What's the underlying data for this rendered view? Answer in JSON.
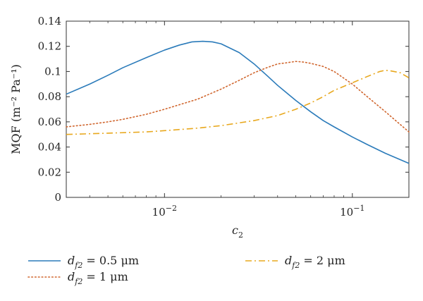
{
  "chart_data": {
    "type": "line",
    "xscale": "log",
    "xlim": [
      0.003,
      0.2
    ],
    "ylim": [
      0,
      0.14
    ],
    "xlabel": "c",
    "xlabel_sub": "2",
    "ylabel": "MQF (m⁻² Pa⁻¹)",
    "x_ticks": [
      {
        "value": 0.01,
        "base": "10",
        "exp": "−2"
      },
      {
        "value": 0.1,
        "base": "10",
        "exp": "−1"
      }
    ],
    "y_ticks": [
      {
        "value": 0,
        "label": "0"
      },
      {
        "value": 0.02,
        "label": "0.02"
      },
      {
        "value": 0.04,
        "label": "0.04"
      },
      {
        "value": 0.06,
        "label": "0.06"
      },
      {
        "value": 0.08,
        "label": "0.08"
      },
      {
        "value": 0.1,
        "label": "0.1"
      },
      {
        "value": 0.12,
        "label": "0.12"
      },
      {
        "value": 0.14,
        "label": "0.14"
      }
    ],
    "legend_position": "bottom",
    "series": [
      {
        "name": "d_f2 = 0.5 μm",
        "label_var": "d",
        "label_sub": "f2",
        "label_value": " = 0.5 μm",
        "color": "#2b7bba",
        "style": "solid",
        "x": [
          0.003,
          0.004,
          0.005,
          0.006,
          0.008,
          0.01,
          0.012,
          0.014,
          0.016,
          0.018,
          0.02,
          0.025,
          0.03,
          0.035,
          0.04,
          0.05,
          0.06,
          0.07,
          0.08,
          0.1,
          0.12,
          0.15,
          0.2
        ],
        "y": [
          0.082,
          0.09,
          0.097,
          0.103,
          0.111,
          0.117,
          0.121,
          0.1235,
          0.124,
          0.1235,
          0.122,
          0.115,
          0.106,
          0.097,
          0.089,
          0.077,
          0.068,
          0.061,
          0.056,
          0.048,
          0.042,
          0.035,
          0.027
        ]
      },
      {
        "name": "d_f2 = 1 μm",
        "label_var": "d",
        "label_sub": "f2",
        "label_value": " = 1 μm",
        "color": "#d0662e",
        "style": "dotted",
        "x": [
          0.003,
          0.004,
          0.005,
          0.006,
          0.008,
          0.01,
          0.015,
          0.02,
          0.025,
          0.03,
          0.035,
          0.04,
          0.045,
          0.05,
          0.055,
          0.06,
          0.07,
          0.08,
          0.1,
          0.12,
          0.15,
          0.2
        ],
        "y": [
          0.056,
          0.058,
          0.06,
          0.062,
          0.066,
          0.07,
          0.078,
          0.086,
          0.093,
          0.099,
          0.103,
          0.106,
          0.107,
          0.108,
          0.1075,
          0.1065,
          0.104,
          0.1,
          0.09,
          0.08,
          0.068,
          0.052
        ]
      },
      {
        "name": "d_f2 = 2 μm",
        "label_var": "d",
        "label_sub": "f2",
        "label_value": " = 2 μm",
        "color": "#e8a81e",
        "style": "dashdot",
        "x": [
          0.003,
          0.005,
          0.008,
          0.01,
          0.015,
          0.02,
          0.03,
          0.04,
          0.05,
          0.06,
          0.07,
          0.08,
          0.1,
          0.12,
          0.14,
          0.15,
          0.16,
          0.18,
          0.2
        ],
        "y": [
          0.05,
          0.051,
          0.052,
          0.053,
          0.055,
          0.057,
          0.061,
          0.065,
          0.07,
          0.075,
          0.08,
          0.085,
          0.091,
          0.096,
          0.1,
          0.101,
          0.1005,
          0.099,
          0.095
        ]
      }
    ]
  }
}
